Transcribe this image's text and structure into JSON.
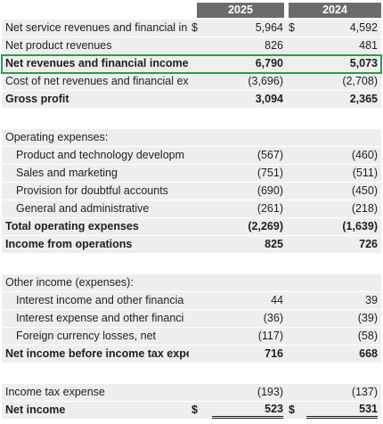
{
  "table": {
    "header": [
      "2025",
      "2024"
    ],
    "sections": [
      [
        {
          "label": "Net service revenues and financial in",
          "cur1": "$",
          "v1": "5,964",
          "cur2": "$",
          "v2": "4,592"
        },
        {
          "label": "Net product revenues",
          "v1": "826",
          "v2": "481"
        },
        {
          "label": "Net revenues and financial income",
          "v1": "6,790",
          "v2": "5,073",
          "bold": true,
          "highlight": true
        },
        {
          "label": "Cost of net revenues and financial ex",
          "v1": "(3,696)",
          "v2": "(2,708)"
        },
        {
          "label": "Gross profit",
          "v1": "3,094",
          "v2": "2,365",
          "bold": true
        }
      ],
      [
        {
          "label": "Operating expenses:"
        },
        {
          "label": "Product and technology developm",
          "v1": "(567)",
          "v2": "(460)",
          "indent": true
        },
        {
          "label": "Sales and marketing",
          "v1": "(751)",
          "v2": "(511)",
          "indent": true
        },
        {
          "label": "Provision for doubtful accounts",
          "v1": "(690)",
          "v2": "(450)",
          "indent": true
        },
        {
          "label": "General and administrative",
          "v1": "(261)",
          "v2": "(218)",
          "indent": true
        },
        {
          "label": "Total operating expenses",
          "v1": "(2,269)",
          "v2": "(1,639)",
          "bold": true
        },
        {
          "label": "Income from operations",
          "v1": "825",
          "v2": "726",
          "bold": true
        }
      ],
      [
        {
          "label": "Other income (expenses):"
        },
        {
          "label": "Interest income and other financia",
          "v1": "44",
          "v2": "39",
          "indent": true
        },
        {
          "label": "Interest expense and other financi",
          "v1": "(36)",
          "v2": "(39)",
          "indent": true
        },
        {
          "label": "Foreign currency losses, net",
          "v1": "(117)",
          "v2": "(58)",
          "indent": true
        },
        {
          "label": "Net income before income tax expe",
          "v1": "716",
          "v2": "668",
          "bold": true
        }
      ],
      [
        {
          "label": "Income tax expense",
          "v1": "(193)",
          "v2": "(137)"
        },
        {
          "label": "Net income",
          "cur1": "$",
          "v1": "523",
          "cur2": "$",
          "v2": "531",
          "bold": true,
          "total": true
        }
      ]
    ]
  }
}
